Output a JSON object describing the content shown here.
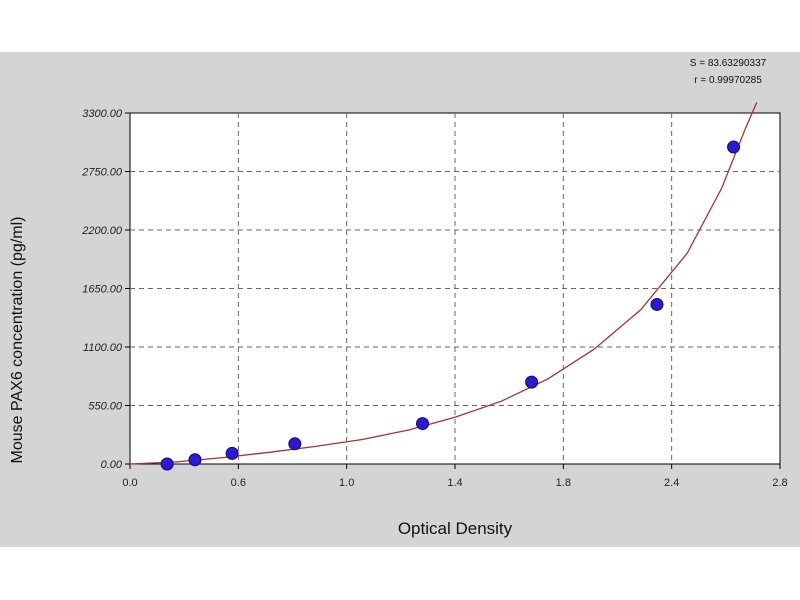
{
  "chart_data": {
    "type": "scatter",
    "title": "",
    "xlabel": "Optical Density",
    "ylabel": "Mouse PAX6 concentration (pg/ml)",
    "xlim": [
      0,
      2.8
    ],
    "ylim": [
      0,
      3300
    ],
    "x_ticks": [
      "0.0",
      "0.6",
      "1.0",
      "1.4",
      "1.8",
      "2.4",
      "2.8"
    ],
    "y_ticks": [
      "0.00",
      "550.00",
      "1100.00",
      "1650.00",
      "2200.00",
      "2750.00",
      "3300.00"
    ],
    "grid": true,
    "stats": [
      "S = 83.63290337",
      "r = 0.99970285"
    ],
    "colors": {
      "points": "#2a1ad0",
      "curve": "#a83232",
      "background": "#d4d4d4",
      "plot": "#ffffff"
    },
    "points": [
      {
        "x": 0.16,
        "y": 0
      },
      {
        "x": 0.28,
        "y": 40
      },
      {
        "x": 0.44,
        "y": 100
      },
      {
        "x": 0.71,
        "y": 190
      },
      {
        "x": 1.26,
        "y": 380
      },
      {
        "x": 1.73,
        "y": 770
      },
      {
        "x": 2.27,
        "y": 1500
      },
      {
        "x": 2.6,
        "y": 2980
      }
    ],
    "curve": [
      {
        "x": 0.0,
        "y": 0
      },
      {
        "x": 0.2,
        "y": 20
      },
      {
        "x": 0.4,
        "y": 60
      },
      {
        "x": 0.6,
        "y": 110
      },
      {
        "x": 0.8,
        "y": 165
      },
      {
        "x": 1.0,
        "y": 230
      },
      {
        "x": 1.2,
        "y": 320
      },
      {
        "x": 1.4,
        "y": 440
      },
      {
        "x": 1.6,
        "y": 590
      },
      {
        "x": 1.8,
        "y": 800
      },
      {
        "x": 2.0,
        "y": 1080
      },
      {
        "x": 2.2,
        "y": 1450
      },
      {
        "x": 2.4,
        "y": 1980
      },
      {
        "x": 2.55,
        "y": 2600
      },
      {
        "x": 2.65,
        "y": 3150
      },
      {
        "x": 2.7,
        "y": 3400
      }
    ]
  }
}
